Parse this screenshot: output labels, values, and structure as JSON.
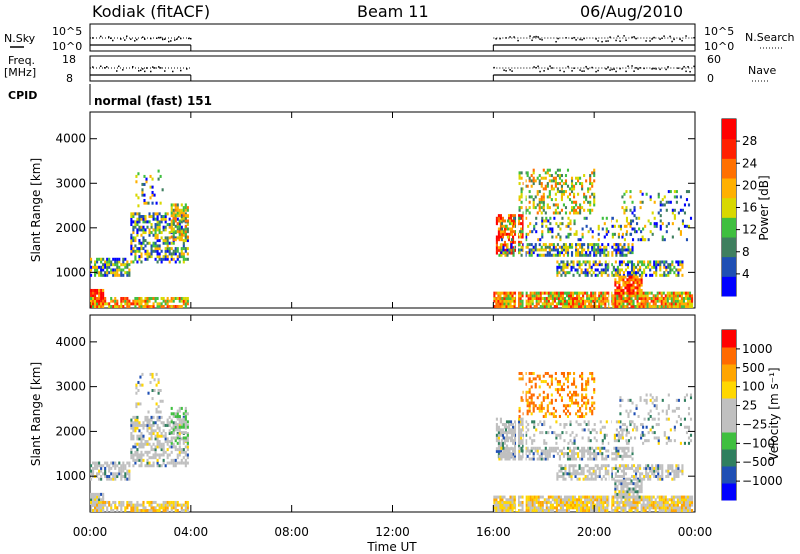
{
  "header": {
    "station": "Kodiak (fitACF)",
    "beam": "Beam 11",
    "date": "06/Aug/2010"
  },
  "labels": {
    "nsky": "N.Sky",
    "nsearch": "N.Search",
    "freq_line1": "Freq.",
    "freq_line2": "[MHz]",
    "nave": "Nave",
    "cpid": "CPID",
    "cpid_value": "normal (fast) 151",
    "xlabel": "Time UT"
  },
  "colors": {
    "power_scale": [
      "#0000ff",
      "#1f4fb4",
      "#3f7f5f",
      "#3fbf3f",
      "#d8d800",
      "#ffb000",
      "#ff7000",
      "#ff2000",
      "#ff0000"
    ],
    "velocity_scale": [
      "#ff0000",
      "#ff6a00",
      "#ffa500",
      "#ffd700",
      "#c0c0c0",
      "#c0c0c0",
      "#3fbf3f",
      "#2f7f5f",
      "#1f4fb4",
      "#0000ff"
    ],
    "ground_scatter": "#c0c0c0"
  },
  "chart_data": [
    {
      "name": "nsky_nsearch",
      "type": "scatter",
      "ylabel_left": "N.Sky",
      "ylabel_right": "N.Search",
      "left_ticks": [
        "10^5",
        "10^0"
      ],
      "right_ticks": [
        "10^5",
        "10^0"
      ],
      "data_intervals_ut": [
        [
          0.0,
          4.0
        ],
        [
          16.0,
          24.0
        ]
      ]
    },
    {
      "name": "freq_nave",
      "type": "scatter",
      "ylabel_left": "Freq. [MHz]",
      "ylabel_right": "Nave",
      "left_ticks": [
        "18",
        "8"
      ],
      "right_ticks": [
        "60",
        "0"
      ],
      "data_intervals_ut": [
        [
          0.0,
          4.0
        ],
        [
          16.0,
          24.0
        ]
      ]
    },
    {
      "name": "power",
      "type": "heatmap",
      "ylabel": "Slant Range [km]",
      "yticks": [
        1000,
        2000,
        3000,
        4000
      ],
      "ylim": [
        200,
        4600
      ],
      "colorbar_label": "Power [dB]",
      "colorbar_ticks": [
        "4",
        "8",
        "12",
        "16",
        "20",
        "24",
        "28"
      ],
      "data_intervals_ut": [
        [
          0.0,
          4.0
        ],
        [
          16.0,
          24.0
        ]
      ]
    },
    {
      "name": "velocity",
      "type": "heatmap",
      "ylabel": "Slant Range [km]",
      "yticks": [
        1000,
        2000,
        3000,
        4000
      ],
      "ylim": [
        200,
        4600
      ],
      "colorbar_label": "Velocity [m s⁻¹]",
      "colorbar_ticks": [
        "1000",
        "500",
        "100",
        "25",
        "−25",
        "−100",
        "−500",
        "−1000"
      ],
      "data_intervals_ut": [
        [
          0.0,
          4.0
        ],
        [
          16.0,
          24.0
        ]
      ]
    }
  ],
  "xaxis": {
    "label": "Time UT",
    "ticks": [
      "00:00",
      "04:00",
      "08:00",
      "12:00",
      "16:00",
      "20:00",
      "00:00"
    ],
    "range_hours": [
      0,
      24
    ]
  }
}
